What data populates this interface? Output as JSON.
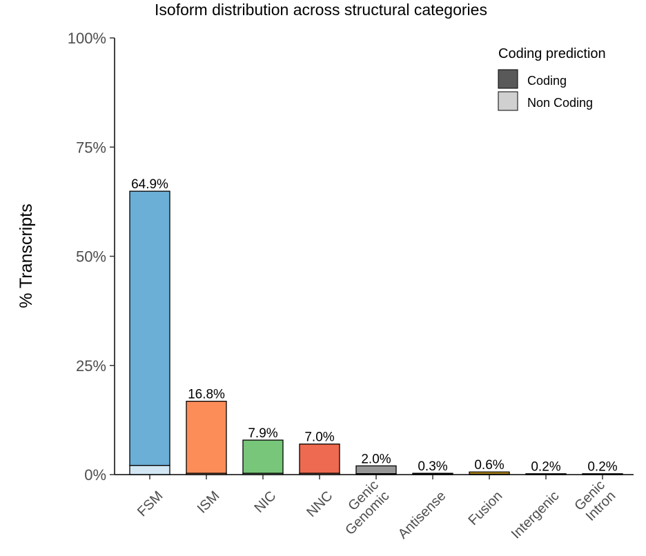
{
  "chart_data": {
    "type": "bar",
    "stacked": true,
    "title": "Isoform distribution across structural categories",
    "ylabel": "% Transcripts",
    "xlabel": "",
    "ylim": [
      0,
      100
    ],
    "yticks": [
      "0%",
      "25%",
      "50%",
      "75%",
      "100%"
    ],
    "ytick_values": [
      0,
      25,
      50,
      75,
      100
    ],
    "categories": [
      "FSM",
      "ISM",
      "NIC",
      "NNC",
      "Genic\nGenomic",
      "Antisense",
      "Fusion",
      "Intergenic",
      "Genic\nIntron"
    ],
    "totals": [
      64.9,
      16.8,
      7.9,
      7.0,
      2.0,
      0.3,
      0.6,
      0.2,
      0.2
    ],
    "total_labels": [
      "64.9%",
      "16.8%",
      "7.9%",
      "7.0%",
      "2.0%",
      "0.3%",
      "0.6%",
      "0.2%",
      "0.2%"
    ],
    "non_coding": [
      2.1,
      0.3,
      0.3,
      0.3,
      0.2,
      0.1,
      0.1,
      0.1,
      0.1
    ],
    "colors": [
      "#6BAED6",
      "#FC8D59",
      "#78C679",
      "#EE6A50",
      "#969696",
      "#66C2A4",
      "#DAA520",
      "#E9967A",
      "#41B6C4"
    ],
    "legend": {
      "title": "Coding prediction",
      "position": "top-right",
      "items": [
        {
          "label": "Coding",
          "color": "#595959"
        },
        {
          "label": "Non Coding",
          "color": "#d0d0d0"
        }
      ]
    },
    "grid": false
  }
}
